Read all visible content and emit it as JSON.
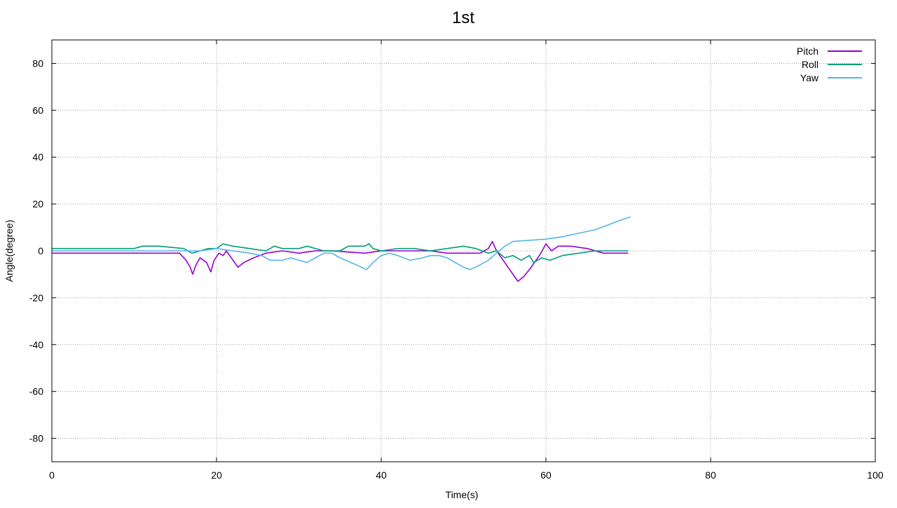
{
  "chart_data": {
    "type": "line",
    "title": "1st",
    "xlabel": "Time(s)",
    "ylabel": "Angle(degree)",
    "xlim": [
      0,
      100
    ],
    "ylim": [
      -90,
      90
    ],
    "xticks": [
      0,
      20,
      40,
      60,
      80,
      100
    ],
    "yticks": [
      -80,
      -60,
      -40,
      -20,
      0,
      20,
      40,
      60,
      80
    ],
    "grid": true,
    "legend_position": "top-right",
    "series": [
      {
        "name": "Pitch",
        "color": "#9400d3",
        "points": [
          [
            0,
            -1
          ],
          [
            5,
            -1
          ],
          [
            10,
            -1
          ],
          [
            14,
            -1
          ],
          [
            15.5,
            -1
          ],
          [
            16.3,
            -4
          ],
          [
            16.8,
            -7
          ],
          [
            17.1,
            -10
          ],
          [
            17.5,
            -6
          ],
          [
            18,
            -3
          ],
          [
            18.8,
            -5
          ],
          [
            19.3,
            -9
          ],
          [
            19.7,
            -4
          ],
          [
            20.3,
            -1
          ],
          [
            20.8,
            -2
          ],
          [
            21.2,
            0
          ],
          [
            21.6,
            -2
          ],
          [
            22,
            -4
          ],
          [
            22.6,
            -7
          ],
          [
            23.3,
            -5
          ],
          [
            24.5,
            -3
          ],
          [
            26,
            -1
          ],
          [
            28,
            0
          ],
          [
            30,
            -1
          ],
          [
            32,
            0
          ],
          [
            34,
            0
          ],
          [
            36,
            -0.5
          ],
          [
            38,
            -1
          ],
          [
            40,
            0
          ],
          [
            42,
            0
          ],
          [
            44,
            0
          ],
          [
            46,
            0
          ],
          [
            48,
            -1
          ],
          [
            50,
            -1
          ],
          [
            52,
            -1
          ],
          [
            53,
            1
          ],
          [
            53.5,
            4
          ],
          [
            54,
            0
          ],
          [
            55,
            -5
          ],
          [
            55.8,
            -9
          ],
          [
            56.6,
            -13
          ],
          [
            57.3,
            -11
          ],
          [
            58,
            -8
          ],
          [
            58.8,
            -4
          ],
          [
            59.4,
            -1
          ],
          [
            60,
            3
          ],
          [
            60.7,
            0
          ],
          [
            61.5,
            2
          ],
          [
            63,
            2
          ],
          [
            65,
            1
          ],
          [
            67,
            -1
          ],
          [
            70,
            -1
          ]
        ]
      },
      {
        "name": "Roll",
        "color": "#009e73",
        "points": [
          [
            0,
            1
          ],
          [
            5,
            1
          ],
          [
            10,
            1
          ],
          [
            11,
            2
          ],
          [
            13,
            2
          ],
          [
            16,
            1
          ],
          [
            17,
            -1
          ],
          [
            18,
            0
          ],
          [
            19,
            1
          ],
          [
            20,
            1
          ],
          [
            20.8,
            3
          ],
          [
            22,
            2
          ],
          [
            24,
            1
          ],
          [
            26,
            0
          ],
          [
            27,
            2
          ],
          [
            28,
            1
          ],
          [
            30,
            1
          ],
          [
            31,
            2
          ],
          [
            33,
            0
          ],
          [
            35,
            0
          ],
          [
            36,
            2
          ],
          [
            38,
            2
          ],
          [
            38.5,
            3
          ],
          [
            39,
            1
          ],
          [
            40,
            0
          ],
          [
            42,
            1
          ],
          [
            44,
            1
          ],
          [
            46,
            0
          ],
          [
            48,
            1
          ],
          [
            50,
            2
          ],
          [
            51.5,
            1
          ],
          [
            53,
            -1
          ],
          [
            54,
            0
          ],
          [
            55,
            -3
          ],
          [
            56,
            -2
          ],
          [
            57,
            -4
          ],
          [
            58,
            -2
          ],
          [
            58.5,
            -5
          ],
          [
            59.5,
            -3
          ],
          [
            60.5,
            -4
          ],
          [
            62,
            -2
          ],
          [
            64,
            -1
          ],
          [
            66,
            0
          ],
          [
            70,
            0
          ]
        ]
      },
      {
        "name": "Yaw",
        "color": "#56b4e9",
        "points": [
          [
            0,
            0
          ],
          [
            5,
            0
          ],
          [
            10,
            0
          ],
          [
            15,
            0
          ],
          [
            18,
            0
          ],
          [
            20,
            1
          ],
          [
            22,
            0
          ],
          [
            24,
            -1
          ],
          [
            25.5,
            -2
          ],
          [
            26.5,
            -4
          ],
          [
            28,
            -4
          ],
          [
            29,
            -3
          ],
          [
            30,
            -4
          ],
          [
            31,
            -5
          ],
          [
            32,
            -3
          ],
          [
            33,
            -1
          ],
          [
            34,
            -1
          ],
          [
            35,
            -3
          ],
          [
            37,
            -6
          ],
          [
            38.2,
            -8
          ],
          [
            39,
            -5
          ],
          [
            40,
            -2
          ],
          [
            41,
            -1
          ],
          [
            42,
            -2
          ],
          [
            43.5,
            -4
          ],
          [
            45,
            -3
          ],
          [
            46,
            -2
          ],
          [
            47,
            -2
          ],
          [
            48,
            -3
          ],
          [
            50,
            -7
          ],
          [
            50.8,
            -8
          ],
          [
            52,
            -6
          ],
          [
            53,
            -4
          ],
          [
            54,
            -1
          ],
          [
            55,
            2
          ],
          [
            56,
            4
          ],
          [
            58,
            4.5
          ],
          [
            60,
            5
          ],
          [
            62,
            6
          ],
          [
            64,
            7.5
          ],
          [
            66,
            9
          ],
          [
            67.5,
            11
          ],
          [
            69,
            13
          ],
          [
            70.3,
            14.5
          ]
        ]
      }
    ]
  }
}
